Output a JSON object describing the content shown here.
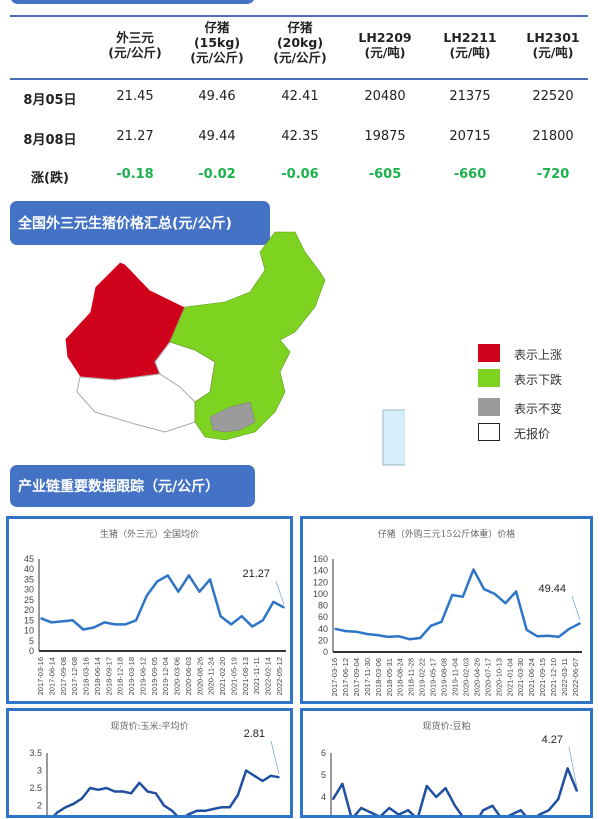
{
  "table": {
    "headers": [
      {
        "l1": "外三元",
        "l2": "(元/公斤)",
        "l3": ""
      },
      {
        "l1": "仔猪",
        "l2": "(15kg)",
        "l3": "(元/公斤)"
      },
      {
        "l1": "仔猪",
        "l2": "(20kg)",
        "l3": "(元/公斤)"
      },
      {
        "l1": "LH2209",
        "l2": "(元/吨)",
        "l3": ""
      },
      {
        "l1": "LH2211",
        "l2": "(元/吨)",
        "l3": ""
      },
      {
        "l1": "LH2301",
        "l2": "(元/吨)",
        "l3": ""
      }
    ],
    "rows": [
      {
        "label": "8月05日",
        "values": [
          "21.45",
          "49.46",
          "42.41",
          "20480",
          "21375",
          "22520"
        ]
      },
      {
        "label": "8月08日",
        "values": [
          "21.27",
          "49.44",
          "42.35",
          "19875",
          "20715",
          "21800"
        ]
      },
      {
        "label": "涨(跌)",
        "values": [
          "-0.18",
          "-0.02",
          "-0.06",
          "-605",
          "-660",
          "-720"
        ]
      }
    ],
    "change_color": "#1bb14c"
  },
  "map_section": {
    "title": "全国外三元生猪价格汇总(元/公斤)",
    "legend": [
      {
        "label": "表示上涨",
        "color": "#d0021b"
      },
      {
        "label": "表示下跌",
        "color": "#7ed321"
      },
      {
        "label": "表示不变",
        "color": "#9b9b9b"
      },
      {
        "label": "无报价",
        "color": "#ffffff"
      }
    ]
  },
  "chain_section": {
    "title": "产业链重要数据跟踪（元/公斤）"
  },
  "chart_data": [
    {
      "type": "line",
      "title": "生猪（外三元）全国均价",
      "ylim": [
        0,
        45
      ],
      "yticks": [
        0,
        5,
        10,
        15,
        20,
        25,
        30,
        35,
        40,
        45
      ],
      "xticks": [
        "2017-03-16",
        "2017-06-14",
        "2017-09-08",
        "2017-12-08",
        "2018-03-16",
        "2018-06-14",
        "2018-09-17",
        "2018-12-18",
        "2019-03-18",
        "2019-06-12",
        "2019-09-05",
        "2019-12-04",
        "2020-03-06",
        "2020-06-03",
        "2020-08-26",
        "2020-11-24",
        "2021-02-20",
        "2021-05-19",
        "2021-08-13",
        "2021-11-11",
        "2022-02-14",
        "2022-05-12"
      ],
      "values": [
        16,
        14,
        14.5,
        15,
        10.5,
        11.5,
        14,
        13,
        13,
        15,
        27,
        34,
        37,
        29,
        37,
        29,
        35,
        17,
        13,
        17,
        12,
        15,
        24,
        21.27
      ],
      "last_label": "21.27",
      "color": "#2e75c8"
    },
    {
      "type": "line",
      "title": "仔猪（外购三元15公斤体重）价格",
      "ylim": [
        0,
        160
      ],
      "yticks": [
        0,
        20,
        40,
        60,
        80,
        100,
        120,
        140,
        160
      ],
      "xticks": [
        "2017-03-16",
        "2017-06-12",
        "2017-09-04",
        "2017-11-30",
        "2018-03-06",
        "2018-05-31",
        "2018-08-24",
        "2018-11-28",
        "2019-02-22",
        "2019-05-17",
        "2019-08-08",
        "2019-11-04",
        "2020-02-03",
        "2020-04-26",
        "2020-07-17",
        "2020-10-13",
        "2021-01-04",
        "2021-03-30",
        "2021-06-24",
        "2021-09-15",
        "2021-12-10",
        "2022-03-11",
        "2022-06-07"
      ],
      "values": [
        40,
        36,
        35,
        31,
        29,
        26,
        27,
        22,
        24,
        45,
        52,
        98,
        95,
        142,
        108,
        100,
        84,
        104,
        38,
        27,
        28,
        26,
        40,
        49.44
      ],
      "last_label": "49.44",
      "color": "#2e75c8"
    },
    {
      "type": "line",
      "title": "现货价:玉米:平均价",
      "ylim": [
        1.5,
        3.5
      ],
      "yticks": [
        1.5,
        2.0,
        2.5,
        3.0,
        3.5
      ],
      "values": [
        1.55,
        1.8,
        1.95,
        2.05,
        2.2,
        2.5,
        2.45,
        2.5,
        2.4,
        2.4,
        2.35,
        2.65,
        2.4,
        2.35,
        2.0,
        1.85,
        1.6,
        1.75,
        1.85,
        1.85,
        1.9,
        1.95,
        1.95,
        2.3,
        3.0,
        2.85,
        2.7,
        2.85,
        2.81
      ],
      "last_label": "2.81",
      "color": "#1f4fa0"
    },
    {
      "type": "line",
      "title": "现货价:豆粕",
      "ylim": [
        2,
        6
      ],
      "yticks": [
        3,
        4,
        5,
        6
      ],
      "values": [
        3.9,
        4.6,
        3.0,
        3.5,
        3.3,
        3.1,
        3.5,
        3.2,
        3.4,
        3.0,
        4.5,
        4.0,
        4.4,
        3.6,
        3.0,
        2.7,
        3.4,
        3.6,
        3.0,
        3.2,
        3.4,
        2.9,
        3.2,
        3.4,
        3.9,
        5.3,
        4.27
      ],
      "last_label": "4.27",
      "color": "#1f4fa0"
    }
  ]
}
